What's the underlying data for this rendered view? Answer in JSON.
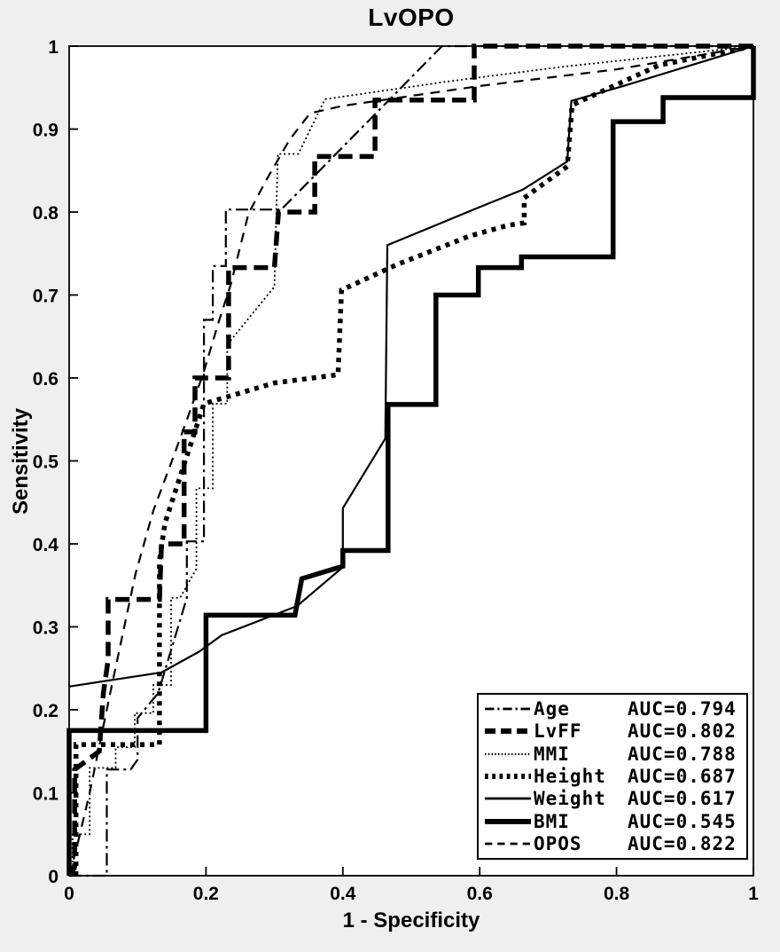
{
  "figure": {
    "title": "LvOPO",
    "xlabel": "1 - Specificity",
    "ylabel": "Sensitivity",
    "background_color": "#f0efee",
    "plot_background_color": "#ffffff",
    "line_color": "#000000"
  },
  "axes": {
    "xlim": [
      0,
      1
    ],
    "ylim": [
      0,
      1
    ],
    "x_tick_labels": [
      "0",
      "0.2",
      "0.4",
      "0.6",
      "0.8",
      "1"
    ],
    "x_ticks": [
      0,
      0.2,
      0.4,
      0.6,
      0.8,
      1
    ],
    "y_tick_labels": [
      "0",
      "0.1",
      "0.2",
      "0.3",
      "0.4",
      "0.5",
      "0.6",
      "0.7",
      "0.8",
      "0.9",
      "1"
    ],
    "y_ticks": [
      0,
      0.1,
      0.2,
      0.3,
      0.4,
      0.5,
      0.6,
      0.7,
      0.8,
      0.9,
      1
    ]
  },
  "chart_data": {
    "type": "line",
    "subtype": "roc-curves",
    "title": "LvOPO",
    "xlabel": "1 - Specificity",
    "ylabel": "Sensitivity",
    "xlim": [
      0,
      1
    ],
    "ylim": [
      0,
      1
    ],
    "grid": false,
    "legend_position": "lower-right",
    "series": [
      {
        "name": "Age",
        "auc": 0.794,
        "auc_label": "AUC=0.794",
        "style": {
          "width": 2.2,
          "dash": [
            14,
            5,
            3,
            5
          ]
        },
        "points": [
          [
            0,
            0
          ],
          [
            0.055,
            0
          ],
          [
            0.055,
            0.128
          ],
          [
            0.09,
            0.128
          ],
          [
            0.1,
            0.14
          ],
          [
            0.1,
            0.19
          ],
          [
            0.13,
            0.22
          ],
          [
            0.172,
            0.335
          ],
          [
            0.172,
            0.403
          ],
          [
            0.197,
            0.403
          ],
          [
            0.197,
            0.67
          ],
          [
            0.21,
            0.67
          ],
          [
            0.21,
            0.735
          ],
          [
            0.229,
            0.735
          ],
          [
            0.229,
            0.803
          ],
          [
            0.31,
            0.803
          ],
          [
            0.545,
            1
          ],
          [
            1,
            1
          ]
        ]
      },
      {
        "name": "LvFF",
        "auc": 0.802,
        "auc_label": "AUC=0.802",
        "style": {
          "width": 5.5,
          "dash": [
            16,
            8
          ]
        },
        "points": [
          [
            0,
            0
          ],
          [
            0.008,
            0.01
          ],
          [
            0.008,
            0.128
          ],
          [
            0.044,
            0.15
          ],
          [
            0.05,
            0.22
          ],
          [
            0.057,
            0.26
          ],
          [
            0.057,
            0.333
          ],
          [
            0.132,
            0.333
          ],
          [
            0.135,
            0.4
          ],
          [
            0.168,
            0.4
          ],
          [
            0.168,
            0.535
          ],
          [
            0.184,
            0.535
          ],
          [
            0.184,
            0.6
          ],
          [
            0.233,
            0.6
          ],
          [
            0.233,
            0.733
          ],
          [
            0.3,
            0.733
          ],
          [
            0.306,
            0.8
          ],
          [
            0.359,
            0.8
          ],
          [
            0.359,
            0.867
          ],
          [
            0.447,
            0.867
          ],
          [
            0.447,
            0.935
          ],
          [
            0.592,
            0.935
          ],
          [
            0.592,
            1
          ],
          [
            1,
            1
          ]
        ]
      },
      {
        "name": "MMI",
        "auc": 0.788,
        "auc_label": "AUC=0.788",
        "style": {
          "width": 1.8,
          "dash": [
            2,
            3
          ]
        },
        "points": [
          [
            0.005,
            0
          ],
          [
            0.005,
            0.05
          ],
          [
            0.03,
            0.05
          ],
          [
            0.03,
            0.13
          ],
          [
            0.068,
            0.13
          ],
          [
            0.068,
            0.155
          ],
          [
            0.096,
            0.155
          ],
          [
            0.096,
            0.196
          ],
          [
            0.123,
            0.196
          ],
          [
            0.123,
            0.23
          ],
          [
            0.149,
            0.23
          ],
          [
            0.149,
            0.335
          ],
          [
            0.162,
            0.335
          ],
          [
            0.186,
            0.37
          ],
          [
            0.186,
            0.467
          ],
          [
            0.21,
            0.467
          ],
          [
            0.21,
            0.569
          ],
          [
            0.231,
            0.569
          ],
          [
            0.231,
            0.64
          ],
          [
            0.3,
            0.71
          ],
          [
            0.305,
            0.87
          ],
          [
            0.335,
            0.87
          ],
          [
            0.374,
            0.936
          ],
          [
            0.55,
            0.957
          ],
          [
            0.72,
            0.975
          ],
          [
            1,
            1
          ]
        ]
      },
      {
        "name": "Height",
        "auc": 0.687,
        "auc_label": "AUC=0.687",
        "style": {
          "width": 5.5,
          "dash": [
            5,
            6
          ]
        },
        "points": [
          [
            0.01,
            0
          ],
          [
            0.01,
            0.158
          ],
          [
            0.132,
            0.158
          ],
          [
            0.132,
            0.38
          ],
          [
            0.14,
            0.425
          ],
          [
            0.197,
            0.569
          ],
          [
            0.3,
            0.594
          ],
          [
            0.393,
            0.604
          ],
          [
            0.398,
            0.706
          ],
          [
            0.48,
            0.737
          ],
          [
            0.585,
            0.771
          ],
          [
            0.641,
            0.784
          ],
          [
            0.665,
            0.787
          ],
          [
            0.665,
            0.817
          ],
          [
            0.728,
            0.855
          ],
          [
            0.735,
            0.929
          ],
          [
            0.862,
            0.977
          ],
          [
            1,
            1
          ]
        ]
      },
      {
        "name": "Weight",
        "auc": 0.617,
        "auc_label": "AUC=0.617",
        "style": {
          "width": 2.2,
          "dash": null
        },
        "points": [
          [
            0,
            0.228
          ],
          [
            0.135,
            0.245
          ],
          [
            0.19,
            0.27
          ],
          [
            0.223,
            0.29
          ],
          [
            0.333,
            0.325
          ],
          [
            0.4,
            0.372
          ],
          [
            0.4,
            0.443
          ],
          [
            0.462,
            0.527
          ],
          [
            0.465,
            0.76
          ],
          [
            0.6,
            0.806
          ],
          [
            0.663,
            0.827
          ],
          [
            0.728,
            0.861
          ],
          [
            0.734,
            0.934
          ],
          [
            0.81,
            0.952
          ],
          [
            1,
            1
          ]
        ]
      },
      {
        "name": "BMI",
        "auc": 0.545,
        "auc_label": "AUC=0.545",
        "style": {
          "width": 5.5,
          "dash": null
        },
        "points": [
          [
            0,
            0
          ],
          [
            0,
            0.175
          ],
          [
            0.2,
            0.175
          ],
          [
            0.2,
            0.314
          ],
          [
            0.33,
            0.314
          ],
          [
            0.34,
            0.358
          ],
          [
            0.4,
            0.373
          ],
          [
            0.4,
            0.392
          ],
          [
            0.466,
            0.392
          ],
          [
            0.466,
            0.568
          ],
          [
            0.536,
            0.568
          ],
          [
            0.536,
            0.7
          ],
          [
            0.598,
            0.7
          ],
          [
            0.598,
            0.733
          ],
          [
            0.661,
            0.733
          ],
          [
            0.661,
            0.746
          ],
          [
            0.795,
            0.746
          ],
          [
            0.795,
            0.909
          ],
          [
            0.868,
            0.909
          ],
          [
            0.868,
            0.938
          ],
          [
            1,
            0.938
          ],
          [
            1,
            1
          ]
        ]
      },
      {
        "name": "OPOS",
        "auc": 0.822,
        "auc_label": "AUC=0.822",
        "style": {
          "width": 2.2,
          "dash": [
            11,
            8
          ]
        },
        "points": [
          [
            0,
            0
          ],
          [
            0.01,
            0.03
          ],
          [
            0.03,
            0.1
          ],
          [
            0.06,
            0.22
          ],
          [
            0.097,
            0.364
          ],
          [
            0.123,
            0.44
          ],
          [
            0.152,
            0.504
          ],
          [
            0.171,
            0.547
          ],
          [
            0.197,
            0.608
          ],
          [
            0.219,
            0.669
          ],
          [
            0.236,
            0.712
          ],
          [
            0.262,
            0.798
          ],
          [
            0.287,
            0.837
          ],
          [
            0.322,
            0.887
          ],
          [
            0.352,
            0.919
          ],
          [
            0.4,
            0.928
          ],
          [
            0.6,
            0.952
          ],
          [
            0.8,
            0.972
          ],
          [
            1,
            1
          ]
        ]
      }
    ]
  }
}
